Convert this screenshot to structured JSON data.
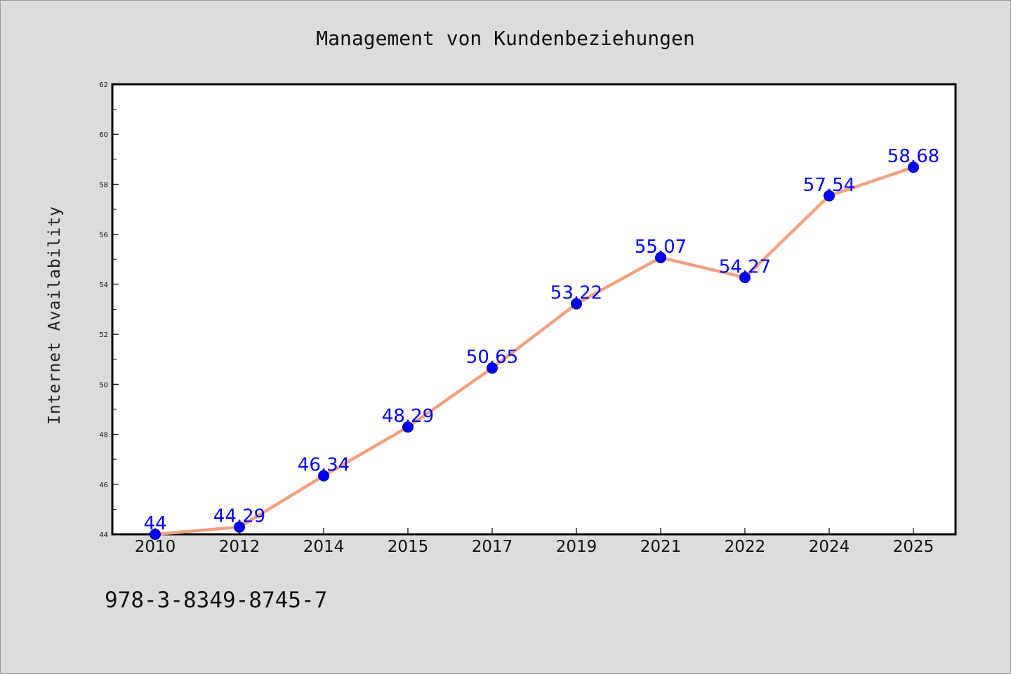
{
  "chart_data": {
    "type": "line",
    "title": "Management von Kundenbeziehungen",
    "xlabel": "",
    "ylabel": "Internet Availability",
    "categories": [
      "2010",
      "2012",
      "2014",
      "2015",
      "2017",
      "2019",
      "2021",
      "2022",
      "2024",
      "2025"
    ],
    "series": [
      {
        "values": [
          44,
          44.29,
          46.34,
          48.29,
          50.65,
          53.22,
          55.07,
          54.27,
          57.54,
          58.68
        ],
        "labels": [
          "44",
          "44.29",
          "46.34",
          "48.29",
          "50.65",
          "53.22",
          "55.07",
          "54.27",
          "57.54",
          "58.68"
        ],
        "line_color": "#f4a07e",
        "marker_color": "#0000ff"
      }
    ],
    "ylim": [
      44,
      62
    ],
    "yticks": [
      "44",
      "46",
      "48",
      "50",
      "52",
      "54",
      "56",
      "58",
      "60",
      "62"
    ],
    "grid": false,
    "legend": "none"
  },
  "footer": {
    "code": "978-3-8349-8745-7"
  }
}
